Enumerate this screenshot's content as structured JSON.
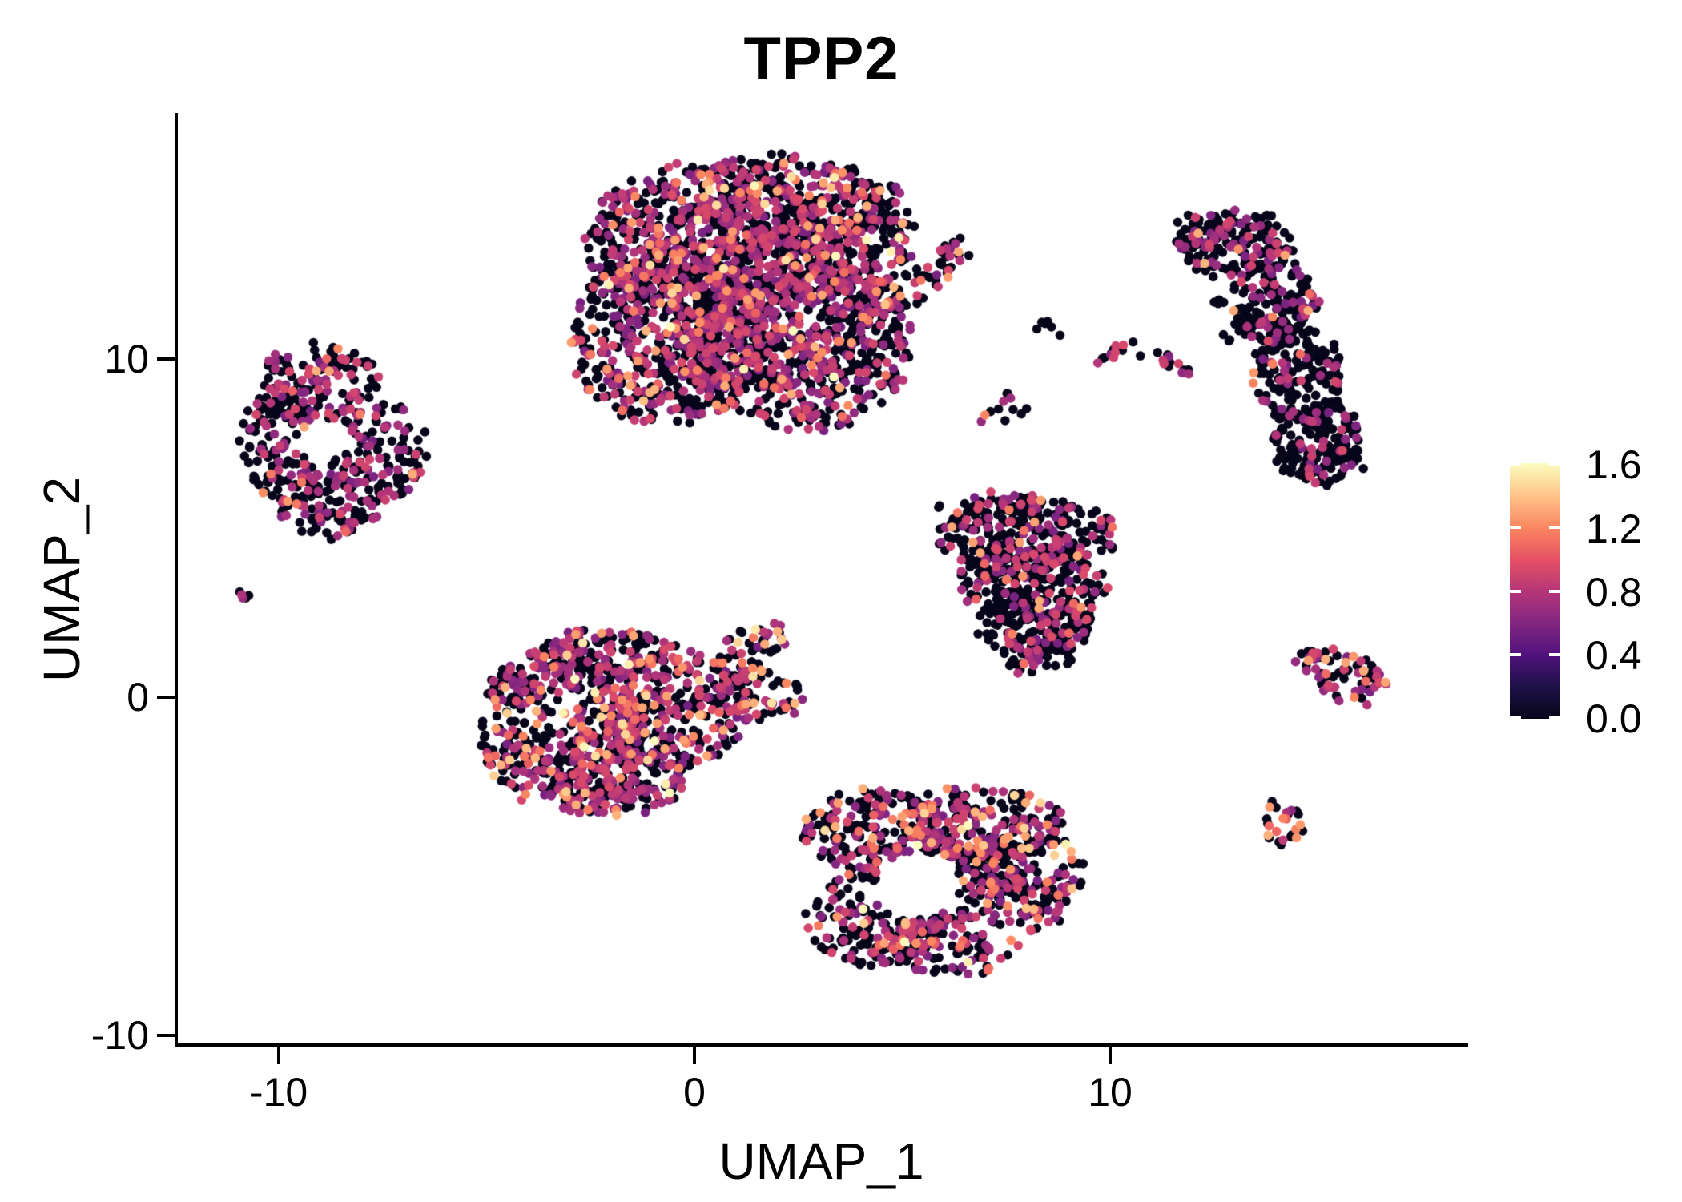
{
  "title": "TPP2",
  "axes": {
    "x": {
      "label": "UMAP_1",
      "tick_labels": [
        "-10",
        "0",
        "10"
      ],
      "tick_values": [
        -10,
        0,
        10
      ]
    },
    "y": {
      "label": "UMAP_2",
      "tick_labels": [
        "10",
        "0",
        "-10"
      ],
      "tick_values": [
        10,
        0,
        -10
      ]
    }
  },
  "legend": {
    "tick_labels": [
      "1.6",
      "1.2",
      "0.8",
      "0.4",
      "0.0"
    ],
    "tick_values": [
      1.6,
      1.2,
      0.8,
      0.4,
      0.0
    ],
    "range": [
      0,
      1.6
    ]
  },
  "chart_data": {
    "type": "scatter",
    "title": "TPP2",
    "xlabel": "UMAP_1",
    "ylabel": "UMAP_2",
    "xlim": [
      -12.43,
      18.54
    ],
    "ylim": [
      -10.24,
      17.23
    ],
    "grid": false,
    "legend_position": "right-colorbar",
    "point_radius_px": 5.8,
    "color_scale": {
      "name": "magma",
      "domain": [
        0,
        1.6
      ],
      "stops": [
        [
          0.0,
          "#070519"
        ],
        [
          0.125,
          "#1d1147"
        ],
        [
          0.25,
          "#51127c"
        ],
        [
          0.375,
          "#822681"
        ],
        [
          0.5,
          "#b63679"
        ],
        [
          0.625,
          "#e65164"
        ],
        [
          0.75,
          "#fb8861"
        ],
        [
          0.875,
          "#fec488"
        ],
        [
          1.0,
          "#fcfdbf"
        ]
      ]
    },
    "expression_levels": {
      "zero": 0.0,
      "mid": [
        0.55,
        0.95
      ],
      "high": [
        1.05,
        1.35
      ],
      "vhigh": [
        1.35,
        1.6
      ]
    },
    "clusters": [
      {
        "name": "top-center-blob",
        "components": [
          {
            "x": 0.25,
            "y": 13.51,
            "rx": 2.89,
            "ry": 2.25,
            "rot": 0,
            "n": 520
          },
          {
            "x": 2.18,
            "y": 14.45,
            "rx": 2.31,
            "ry": 1.66,
            "rot": 0,
            "n": 300
          },
          {
            "x": -0.71,
            "y": 10.66,
            "rx": 2.31,
            "ry": 2.61,
            "rot": 0,
            "n": 500
          },
          {
            "x": 2.56,
            "y": 10.43,
            "rx": 2.7,
            "ry": 2.61,
            "rot": 0,
            "n": 620
          },
          {
            "x": 3.91,
            "y": 13.74,
            "rx": 1.35,
            "ry": 1.78,
            "rot": 0,
            "n": 210
          },
          {
            "x": 1.02,
            "y": 11.85,
            "rx": 3.08,
            "ry": 2.84,
            "rot": 0,
            "n": 430
          },
          {
            "x": 5.16,
            "y": 12.16,
            "rx": 1.39,
            "ry": 0.47,
            "rot": -30,
            "n": 60
          },
          {
            "x": 6.26,
            "y": 13.1,
            "rx": 0.54,
            "ry": 0.43,
            "rot": 0,
            "n": 12
          },
          {
            "x": 3.53,
            "y": 10.43,
            "rx": 1.06,
            "ry": 1.18,
            "rot": 0,
            "n": 22
          }
        ],
        "holes": [],
        "expr": {
          "zero": 0.56,
          "mid": 0.37,
          "high": 0.06,
          "vhigh": 0.01
        }
      },
      {
        "name": "top-right-crescent",
        "components": [
          {
            "x": 12.1,
            "y": 13.74,
            "rx": 0.58,
            "ry": 0.59,
            "rot": 0,
            "n": 28
          },
          {
            "x": 13.06,
            "y": 13.39,
            "rx": 1.35,
            "ry": 1.0,
            "rot": 0,
            "n": 165
          },
          {
            "x": 13.93,
            "y": 11.61,
            "rx": 1.06,
            "ry": 1.37,
            "rot": 0,
            "n": 150
          },
          {
            "x": 14.51,
            "y": 9.48,
            "rx": 1.06,
            "ry": 1.47,
            "rot": 0,
            "n": 160
          },
          {
            "x": 15.09,
            "y": 7.46,
            "rx": 1.16,
            "ry": 1.18,
            "rot": 0,
            "n": 155
          }
        ],
        "holes": [],
        "expr": {
          "zero": 0.76,
          "mid": 0.21,
          "high": 0.03,
          "vhigh": 0
        }
      },
      {
        "name": "left-ring",
        "components": [
          {
            "x": -9.0,
            "y": 9.24,
            "rx": 1.45,
            "ry": 1.18,
            "rot": 0,
            "n": 135
          },
          {
            "x": -9.96,
            "y": 7.58,
            "rx": 1.06,
            "ry": 1.78,
            "rot": 0,
            "n": 125
          },
          {
            "x": -7.65,
            "y": 7.23,
            "rx": 1.16,
            "ry": 1.54,
            "rot": 0,
            "n": 135
          },
          {
            "x": -8.8,
            "y": 5.69,
            "rx": 1.35,
            "ry": 0.95,
            "rot": 0,
            "n": 105
          }
        ],
        "holes": [
          {
            "x": -8.84,
            "y": 7.63,
            "r": 0.62
          }
        ],
        "expr": {
          "zero": 0.62,
          "mid": 0.34,
          "high": 0.04,
          "vhigh": 0
        }
      },
      {
        "name": "far-left-dot",
        "components": [
          {
            "x": -10.81,
            "y": 3.03,
            "rx": 0.19,
            "ry": 0.28,
            "rot": 0,
            "n": 5
          }
        ],
        "holes": [],
        "expr": {
          "zero": 0.4,
          "mid": 0.6,
          "high": 0,
          "vhigh": 0
        }
      },
      {
        "name": "center-triangle",
        "components": [
          {
            "x": 7.57,
            "y": 5.45,
            "rx": 1.73,
            "ry": 0.59,
            "rot": 0,
            "n": 55
          },
          {
            "x": 8.05,
            "y": 4.79,
            "rx": 2.16,
            "ry": 1.14,
            "rot": 0,
            "n": 250
          },
          {
            "x": 8.11,
            "y": 3.32,
            "rx": 1.83,
            "ry": 1.07,
            "rot": 0,
            "n": 195
          },
          {
            "x": 8.19,
            "y": 2.13,
            "rx": 1.35,
            "ry": 0.9,
            "rot": 0,
            "n": 135
          },
          {
            "x": 8.3,
            "y": 1.3,
            "rx": 0.81,
            "ry": 0.62,
            "rot": 0,
            "n": 55
          }
        ],
        "holes": [],
        "expr": {
          "zero": 0.68,
          "mid": 0.29,
          "high": 0.03,
          "vhigh": 0
        }
      },
      {
        "name": "center-left-blob",
        "components": [
          {
            "x": -3.22,
            "y": -0.83,
            "rx": 2.02,
            "ry": 2.37,
            "rot": 0,
            "n": 420
          },
          {
            "x": -0.52,
            "y": -0.36,
            "rx": 1.83,
            "ry": 1.78,
            "rot": 0,
            "n": 290
          },
          {
            "x": -1.87,
            "y": -2.25,
            "rx": 1.83,
            "ry": 1.18,
            "rot": 0,
            "n": 195
          },
          {
            "x": 1.21,
            "y": 1.3,
            "rx": 1.06,
            "ry": 0.66,
            "rot": -35,
            "n": 55
          },
          {
            "x": 1.6,
            "y": 0.0,
            "rx": 1.06,
            "ry": 0.71,
            "rot": 0,
            "n": 60
          },
          {
            "x": -2.06,
            "y": 1.18,
            "rx": 1.73,
            "ry": 0.83,
            "rot": 0,
            "n": 115
          },
          {
            "x": -2.35,
            "y": -3.08,
            "rx": 0.87,
            "ry": 0.52,
            "rot": 0,
            "n": 40
          }
        ],
        "holes": [],
        "expr": {
          "zero": 0.5,
          "mid": 0.37,
          "high": 0.1,
          "vhigh": 0.03
        }
      },
      {
        "name": "bottom-center-blob",
        "components": [
          {
            "x": 4.3,
            "y": -4.03,
            "rx": 1.64,
            "ry": 1.3,
            "rot": 0,
            "n": 185
          },
          {
            "x": 6.8,
            "y": -3.79,
            "rx": 2.02,
            "ry": 1.23,
            "rot": 0,
            "n": 205
          },
          {
            "x": 8.05,
            "y": -5.33,
            "rx": 1.35,
            "ry": 1.54,
            "rot": 0,
            "n": 165
          },
          {
            "x": 4.39,
            "y": -6.52,
            "rx": 1.73,
            "ry": 1.37,
            "rot": 0,
            "n": 185
          },
          {
            "x": 6.13,
            "y": -7.35,
            "rx": 1.64,
            "ry": 0.9,
            "rot": 0,
            "n": 115
          },
          {
            "x": 6.13,
            "y": -5.21,
            "rx": 1.83,
            "ry": 1.42,
            "rot": 0,
            "n": 165
          }
        ],
        "holes": [
          {
            "x": 5.36,
            "y": -5.57,
            "r": 1.0
          }
        ],
        "expr": {
          "zero": 0.55,
          "mid": 0.35,
          "high": 0.08,
          "vhigh": 0.02
        }
      },
      {
        "name": "right-wedge",
        "components": [
          {
            "x": 14.93,
            "y": 1.18,
            "rx": 0.58,
            "ry": 0.36,
            "rot": -20,
            "n": 18
          },
          {
            "x": 15.82,
            "y": 0.52,
            "rx": 0.81,
            "ry": 0.71,
            "rot": 0,
            "n": 58
          }
        ],
        "holes": [],
        "expr": {
          "zero": 0.45,
          "mid": 0.45,
          "high": 0.1,
          "vhigh": 0
        }
      },
      {
        "name": "right-small-circle",
        "components": [
          {
            "x": 14.14,
            "y": -3.77,
            "rx": 0.58,
            "ry": 0.66,
            "rot": 0,
            "n": 26
          }
        ],
        "holes": [],
        "expr": {
          "zero": 0.62,
          "mid": 0.12,
          "high": 0.26,
          "vhigh": 0
        }
      },
      {
        "name": "mid-fragment-black-blob",
        "components": [
          {
            "x": 8.59,
            "y": 10.81,
            "rx": 0.33,
            "ry": 0.31,
            "rot": 0,
            "n": 6
          }
        ],
        "holes": [],
        "expr": {
          "zero": 1.0,
          "mid": 0,
          "high": 0,
          "vhigh": 0
        }
      },
      {
        "name": "mid-fragment-streak-a",
        "components": [
          {
            "x": 10.17,
            "y": 10.17,
            "rx": 0.58,
            "ry": 0.21,
            "rot": -25,
            "n": 12
          }
        ],
        "holes": [],
        "expr": {
          "zero": 0.25,
          "mid": 0.75,
          "high": 0,
          "vhigh": 0
        }
      },
      {
        "name": "mid-fragment-streak-b",
        "components": [
          {
            "x": 11.43,
            "y": 9.86,
            "rx": 0.77,
            "ry": 0.24,
            "rot": 22,
            "n": 14
          }
        ],
        "holes": [],
        "expr": {
          "zero": 0.5,
          "mid": 0.5,
          "high": 0,
          "vhigh": 0
        }
      },
      {
        "name": "mid-fragment-dots-c",
        "components": [
          {
            "x": 12.66,
            "y": 11.47,
            "rx": 0.19,
            "ry": 0.33,
            "rot": 0,
            "n": 4
          }
        ],
        "holes": [],
        "expr": {
          "zero": 1.0,
          "mid": 0,
          "high": 0,
          "vhigh": 0
        }
      },
      {
        "name": "mid-fragment-dots-d",
        "components": [
          {
            "x": 12.91,
            "y": 10.66,
            "rx": 0.17,
            "ry": 0.21,
            "rot": 0,
            "n": 3
          }
        ],
        "holes": [],
        "expr": {
          "zero": 1.0,
          "mid": 0,
          "high": 0,
          "vhigh": 0
        }
      },
      {
        "name": "mid-fragment-pair-e",
        "components": [
          {
            "x": 7.48,
            "y": 8.48,
            "rx": 0.73,
            "ry": 0.62,
            "rot": -20,
            "n": 12
          }
        ],
        "holes": [],
        "expr": {
          "zero": 0.7,
          "mid": 0.2,
          "high": 0.1,
          "vhigh": 0
        }
      }
    ]
  }
}
